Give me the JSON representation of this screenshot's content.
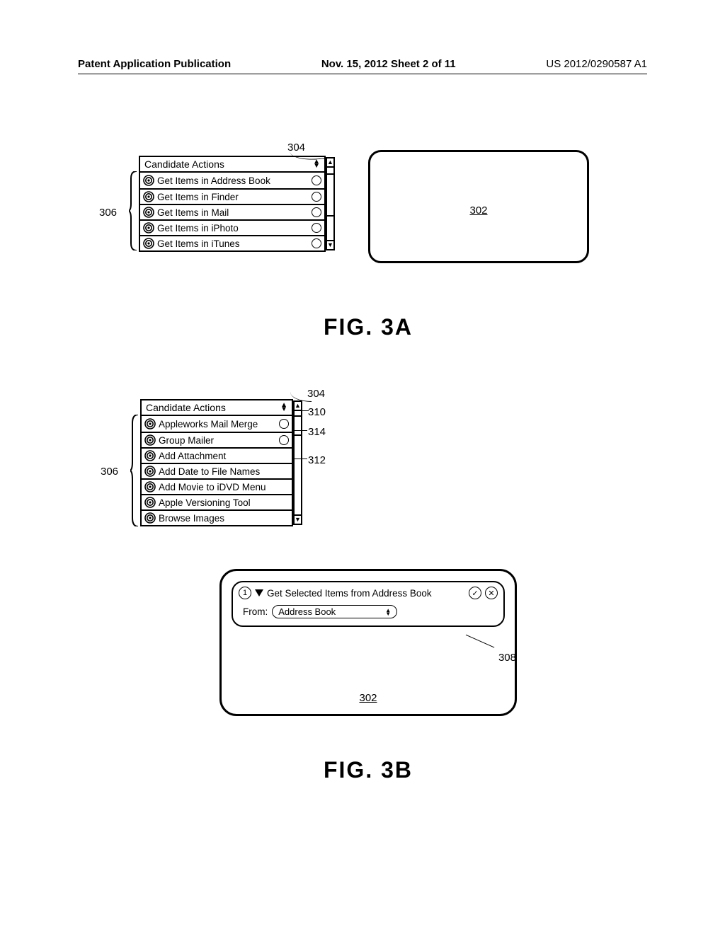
{
  "header": {
    "left": "Patent Application Publication",
    "center": "Nov. 15, 2012  Sheet 2 of 11",
    "right": "US 2012/0290587 A1"
  },
  "refs": {
    "r302": "302",
    "r304": "304",
    "r306": "306",
    "r308": "308",
    "r310": "310",
    "r312": "312",
    "r314": "314"
  },
  "fig3a": {
    "caption": "FIG. 3A",
    "panel_title": "Candidate Actions",
    "rows": [
      "Get Items in Address Book",
      "Get Items in Finder",
      "Get Items in Mail",
      "Get Items in iPhoto",
      "Get Items in iTunes"
    ],
    "scrollbar": {
      "thumb_top_pct": 8,
      "thumb_height_pct": 60
    }
  },
  "fig3b": {
    "caption": "FIG. 3B",
    "panel_title": "Candidate Actions",
    "rows": [
      "Appleworks Mail Merge",
      "Group Mailer",
      "Add Attachment",
      "Add Date to File Names",
      "Add Movie to iDVD Menu",
      "Apple Versioning Tool",
      "Browse Images"
    ],
    "scrollbar": {
      "thumb_top_pct": 4,
      "thumb_height_pct": 20
    },
    "step": {
      "index": "1",
      "title": "Get Selected Items from Address Book",
      "from_label": "From:",
      "from_value": "Address Book"
    }
  },
  "colors": {
    "fg": "#000000",
    "bg": "#ffffff"
  }
}
